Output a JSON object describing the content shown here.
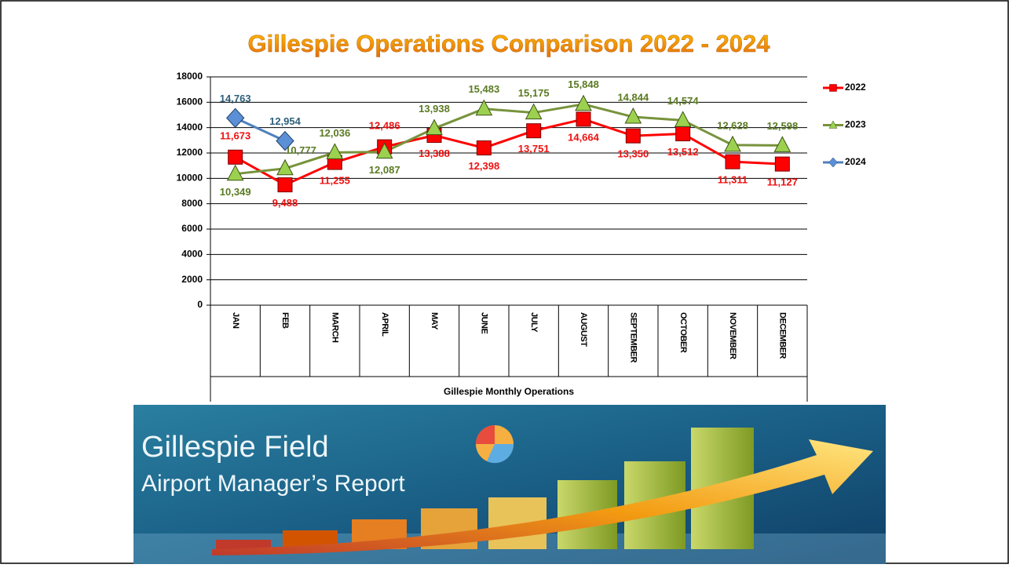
{
  "chart_data": {
    "type": "line",
    "title": "Gillespie Operations Comparison 2022 - 2024",
    "x_label": "Gillespie Monthly Operations",
    "categories": [
      "JAN",
      "FEB",
      "MARCH",
      "APRIL",
      "MAY",
      "JUNE",
      "JULY",
      "AUGUST",
      "SEPTEMBER",
      "OCTOBER",
      "NOVEMBER",
      "DECEMBER"
    ],
    "series": [
      {
        "name": "2022",
        "color": "#ff0000",
        "marker_color": "#ff0000",
        "label_color": "#ee1111",
        "values": [
          11673,
          9488,
          11255,
          12486,
          13388,
          12398,
          13751,
          14664,
          13350,
          13512,
          11311,
          11127
        ],
        "value_labels": [
          "11,673",
          "9,488",
          "11,255",
          "12,486",
          "13,388",
          "12,398",
          "13,751",
          "14,664",
          "13,350",
          "13,512",
          "11,311",
          "11,127"
        ]
      },
      {
        "name": "2023",
        "color": "#77933c",
        "marker_color": "#9bd14f",
        "label_color": "#5a7a22",
        "values": [
          10349,
          10777,
          12036,
          12087,
          13938,
          15483,
          15175,
          15848,
          14844,
          14574,
          12628,
          12598
        ],
        "value_labels": [
          "10,349",
          "10,777",
          "12,036",
          "12,087",
          "13,938",
          "15,483",
          "15,175",
          "15,848",
          "14,844",
          "14,574",
          "12,628",
          "12,598"
        ]
      },
      {
        "name": "2024",
        "color": "#4f81bd",
        "marker_color": "#5b8fd6",
        "label_color": "#2e5f7a",
        "values": [
          14763,
          12954,
          null,
          null,
          null,
          null,
          null,
          null,
          null,
          null,
          null,
          null
        ],
        "value_labels": [
          "14,763",
          "12,954",
          null,
          null,
          null,
          null,
          null,
          null,
          null,
          null,
          null,
          null
        ]
      }
    ],
    "ylim": [
      0,
      18000
    ],
    "yticks": [
      0,
      2000,
      4000,
      6000,
      8000,
      10000,
      12000,
      14000,
      16000,
      18000
    ],
    "grid": true,
    "legend": "right"
  },
  "banner": {
    "title": "Gillespie Field",
    "subtitle": "Airport Manager’s Report"
  }
}
